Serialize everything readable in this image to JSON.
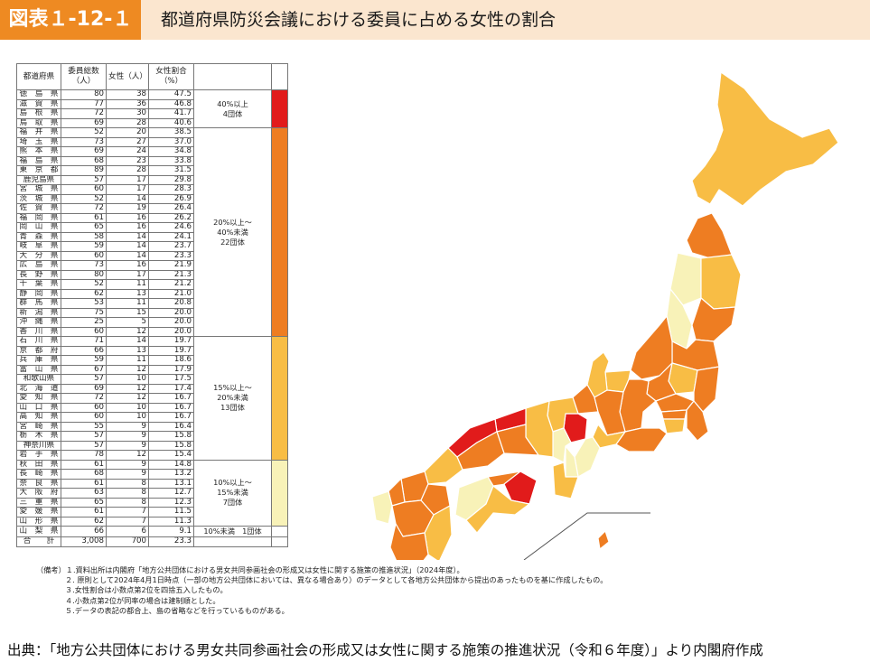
{
  "header": {
    "figure_label": "図表１-12-１",
    "title": "都道府県防災会議における委員に占める女性の割合"
  },
  "chart_data": {
    "type": "table",
    "columns": [
      "都道府県",
      "委員総数（人）",
      "女性（人）",
      "女性割合（%）"
    ],
    "rows": [
      {
        "pref": "徳　島　県",
        "total": "80",
        "women": "38",
        "ratio": "47.5"
      },
      {
        "pref": "滋　賀　県",
        "total": "77",
        "women": "36",
        "ratio": "46.8"
      },
      {
        "pref": "島　根　県",
        "total": "72",
        "women": "30",
        "ratio": "41.7"
      },
      {
        "pref": "鳥　取　県",
        "total": "69",
        "women": "28",
        "ratio": "40.6"
      },
      {
        "pref": "福　井　県",
        "total": "52",
        "women": "20",
        "ratio": "38.5"
      },
      {
        "pref": "埼　玉　県",
        "total": "73",
        "women": "27",
        "ratio": "37.0"
      },
      {
        "pref": "熊　本　県",
        "total": "69",
        "women": "24",
        "ratio": "34.8"
      },
      {
        "pref": "福　島　県",
        "total": "68",
        "women": "23",
        "ratio": "33.8"
      },
      {
        "pref": "東　京　都",
        "total": "89",
        "women": "28",
        "ratio": "31.5"
      },
      {
        "pref": "鹿児島県",
        "total": "57",
        "women": "17",
        "ratio": "29.8"
      },
      {
        "pref": "宮　城　県",
        "total": "60",
        "women": "17",
        "ratio": "28.3"
      },
      {
        "pref": "茨　城　県",
        "total": "52",
        "women": "14",
        "ratio": "26.9"
      },
      {
        "pref": "佐　賀　県",
        "total": "72",
        "women": "19",
        "ratio": "26.4"
      },
      {
        "pref": "福　岡　県",
        "total": "61",
        "women": "16",
        "ratio": "26.2"
      },
      {
        "pref": "岡　山　県",
        "total": "65",
        "women": "16",
        "ratio": "24.6"
      },
      {
        "pref": "青　森　県",
        "total": "58",
        "women": "14",
        "ratio": "24.1"
      },
      {
        "pref": "岐　阜　県",
        "total": "59",
        "women": "14",
        "ratio": "23.7"
      },
      {
        "pref": "大　分　県",
        "total": "60",
        "women": "14",
        "ratio": "23.3"
      },
      {
        "pref": "広　島　県",
        "total": "73",
        "women": "16",
        "ratio": "21.9"
      },
      {
        "pref": "長　野　県",
        "total": "80",
        "women": "17",
        "ratio": "21.3"
      },
      {
        "pref": "千　葉　県",
        "total": "52",
        "women": "11",
        "ratio": "21.2"
      },
      {
        "pref": "静　岡　県",
        "total": "62",
        "women": "13",
        "ratio": "21.0"
      },
      {
        "pref": "群　馬　県",
        "total": "53",
        "women": "11",
        "ratio": "20.8"
      },
      {
        "pref": "新　潟　県",
        "total": "75",
        "women": "15",
        "ratio": "20.0"
      },
      {
        "pref": "沖　縄　県",
        "total": "25",
        "women": "5",
        "ratio": "20.0"
      },
      {
        "pref": "香　川　県",
        "total": "60",
        "women": "12",
        "ratio": "20.0"
      },
      {
        "pref": "石　川　県",
        "total": "71",
        "women": "14",
        "ratio": "19.7"
      },
      {
        "pref": "京　都　府",
        "total": "66",
        "women": "13",
        "ratio": "19.7"
      },
      {
        "pref": "兵　庫　県",
        "total": "59",
        "women": "11",
        "ratio": "18.6"
      },
      {
        "pref": "富　山　県",
        "total": "67",
        "women": "12",
        "ratio": "17.9"
      },
      {
        "pref": "和歌山県",
        "total": "57",
        "women": "10",
        "ratio": "17.5"
      },
      {
        "pref": "北　海　道",
        "total": "69",
        "women": "12",
        "ratio": "17.4"
      },
      {
        "pref": "愛　知　県",
        "total": "72",
        "women": "12",
        "ratio": "16.7"
      },
      {
        "pref": "山　口　県",
        "total": "60",
        "women": "10",
        "ratio": "16.7"
      },
      {
        "pref": "高　知　県",
        "total": "60",
        "women": "10",
        "ratio": "16.7"
      },
      {
        "pref": "宮　崎　県",
        "total": "55",
        "women": "9",
        "ratio": "16.4"
      },
      {
        "pref": "栃　木　県",
        "total": "57",
        "women": "9",
        "ratio": "15.8"
      },
      {
        "pref": "神奈川県",
        "total": "57",
        "women": "9",
        "ratio": "15.8"
      },
      {
        "pref": "岩　手　県",
        "total": "78",
        "women": "12",
        "ratio": "15.4"
      },
      {
        "pref": "秋　田　県",
        "total": "61",
        "women": "9",
        "ratio": "14.8"
      },
      {
        "pref": "長　崎　県",
        "total": "68",
        "women": "9",
        "ratio": "13.2"
      },
      {
        "pref": "奈　良　県",
        "total": "61",
        "women": "8",
        "ratio": "13.1"
      },
      {
        "pref": "大　阪　府",
        "total": "63",
        "women": "8",
        "ratio": "12.7"
      },
      {
        "pref": "三　重　県",
        "total": "65",
        "women": "8",
        "ratio": "12.3"
      },
      {
        "pref": "愛　媛　県",
        "total": "61",
        "women": "7",
        "ratio": "11.5"
      },
      {
        "pref": "山　形　県",
        "total": "62",
        "women": "7",
        "ratio": "11.3"
      },
      {
        "pref": "山　梨　県",
        "total": "66",
        "women": "6",
        "ratio": "9.1"
      }
    ],
    "total_row": {
      "pref": "合　　計",
      "total": "3,008",
      "women": "700",
      "ratio": "23.3"
    },
    "groups": [
      {
        "label": "40%以上\n4団体",
        "color": "#e11b1b",
        "count": 4
      },
      {
        "label": "20%以上～\n40%未満\n22団体",
        "color": "#ee7d22",
        "count": 22
      },
      {
        "label": "15%以上～\n20%未満\n13団体",
        "color": "#f8bd45",
        "count": 13
      },
      {
        "label": "10%以上～\n15%未満\n7団体",
        "color": "#f8f2b8",
        "count": 7
      },
      {
        "label": "10%未満　1団体",
        "color": "#ffffff",
        "count": 1
      }
    ]
  },
  "notes": [
    "（備考）１.資料出所は内閣府「地方公共団体における男女共同参画社会の形成又は女性に関する施策の推進状況」（2024年度）。",
    "２. 原則として2024年4月1日時点（一部の地方公共団体においては、異なる場合あり）のデータとして各地方公共団体から提出のあったものを基に作成したもの。",
    "３.女性割合は小数点第2位を四捨五入したもの。",
    "４.小数点第2位が同率の場合は建制順とした。",
    "５.データの表記の都合上、島の省略などを行っているものがある。"
  ],
  "source": "出典：「地方公共団体における男女共同参画社会の形成又は女性に関する施策の推進状況（令和６年度）」より内閣府作成",
  "map": {
    "colors": {
      "over40": "#e11b1b",
      "from20": "#ee7d22",
      "from15": "#f8bd45",
      "from10": "#f8f2b8",
      "under10": "#ffffff",
      "stroke": "#ffffff"
    }
  }
}
